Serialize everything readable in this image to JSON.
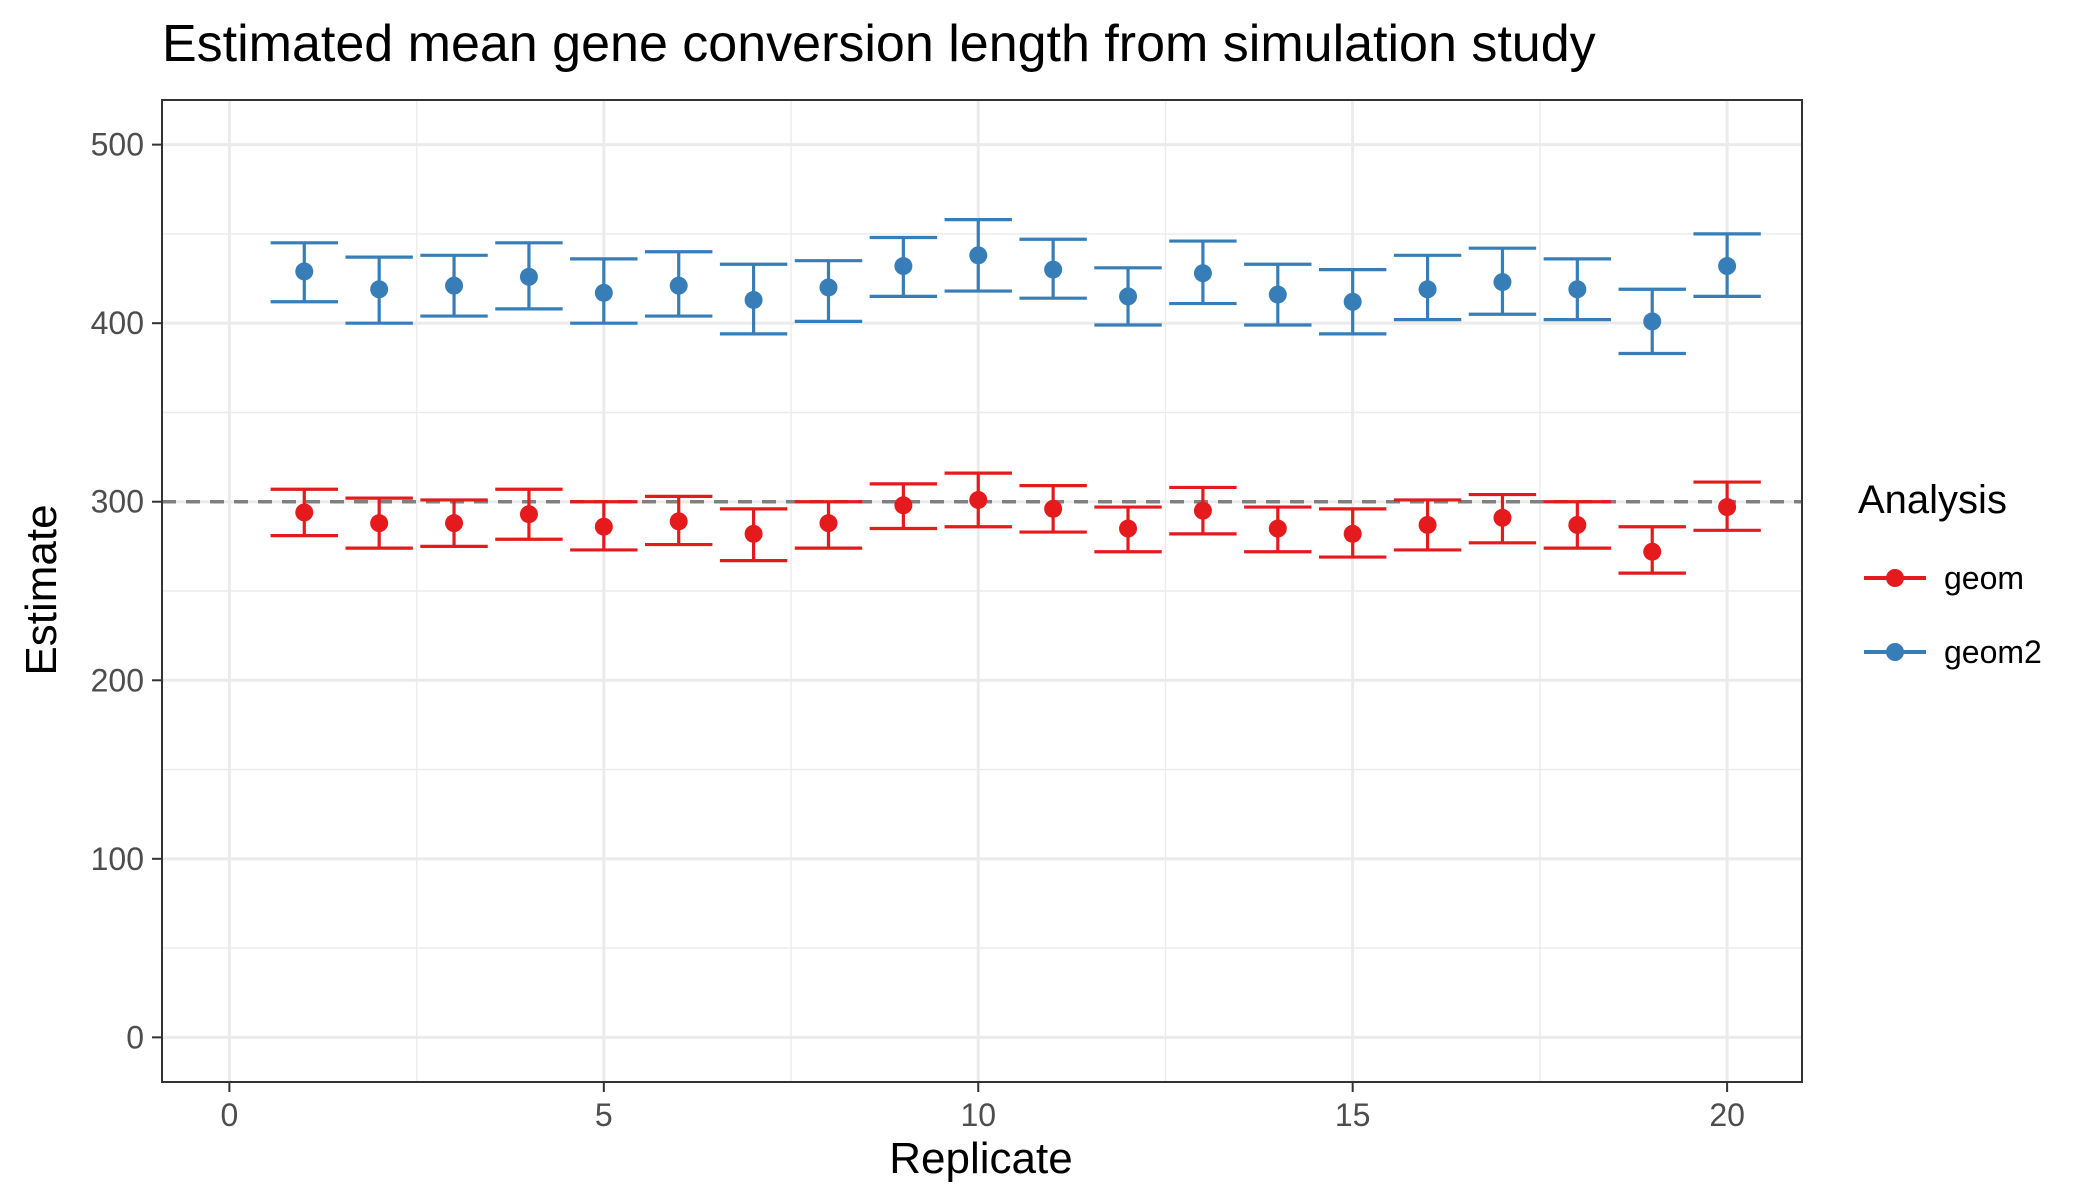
{
  "chart_data": {
    "type": "scatter",
    "title": "Estimated mean gene conversion length from simulation study",
    "xlabel": "Replicate",
    "ylabel": "Estimate",
    "xlim": [
      -0.9,
      21.0
    ],
    "ylim": [
      -25,
      525
    ],
    "x_ticks": [
      0,
      5,
      10,
      15,
      20
    ],
    "y_ticks": [
      0,
      100,
      200,
      300,
      400,
      500
    ],
    "grid": true,
    "reference_line": {
      "y": 300,
      "style": "dashed",
      "color": "#808080"
    },
    "legend": {
      "title": "Analysis",
      "position": "right"
    },
    "x": [
      1,
      2,
      3,
      4,
      5,
      6,
      7,
      8,
      9,
      10,
      11,
      12,
      13,
      14,
      15,
      16,
      17,
      18,
      19,
      20
    ],
    "series": [
      {
        "name": "geom",
        "color": "#E41A1C",
        "values": [
          294,
          288,
          288,
          293,
          286,
          289,
          282,
          288,
          298,
          301,
          296,
          285,
          295,
          285,
          282,
          287,
          291,
          287,
          272,
          297
        ],
        "lower": [
          281,
          274,
          275,
          279,
          273,
          276,
          267,
          274,
          285,
          286,
          283,
          272,
          282,
          272,
          269,
          273,
          277,
          274,
          260,
          284
        ],
        "upper": [
          307,
          302,
          301,
          307,
          300,
          303,
          296,
          300,
          310,
          316,
          309,
          297,
          308,
          297,
          296,
          301,
          304,
          300,
          286,
          311
        ]
      },
      {
        "name": "geom2",
        "color": "#377EB8",
        "values": [
          429,
          419,
          421,
          426,
          417,
          421,
          413,
          420,
          432,
          438,
          430,
          415,
          428,
          416,
          412,
          419,
          423,
          419,
          401,
          432
        ],
        "lower": [
          412,
          400,
          404,
          408,
          400,
          404,
          394,
          401,
          415,
          418,
          414,
          399,
          411,
          399,
          394,
          402,
          405,
          402,
          383,
          415
        ],
        "upper": [
          445,
          437,
          438,
          445,
          436,
          440,
          433,
          435,
          448,
          458,
          447,
          431,
          446,
          433,
          430,
          438,
          442,
          436,
          419,
          450
        ]
      }
    ]
  }
}
